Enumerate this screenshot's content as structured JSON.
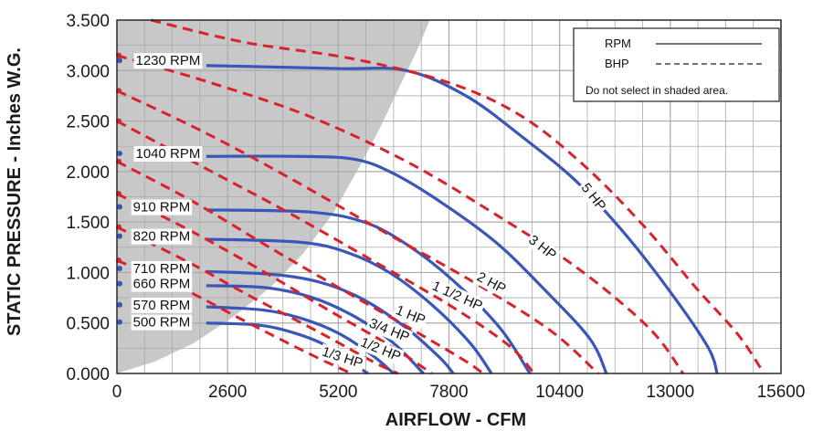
{
  "chart_data": {
    "type": "line",
    "xlabel": "AIRFLOW - CFM",
    "ylabel": "STATIC PRESSURE - Inches W.G.",
    "xlim": [
      0,
      15600
    ],
    "ylim": [
      0,
      3.5
    ],
    "x_ticks": [
      "0",
      "2600",
      "5200",
      "7800",
      "10400",
      "13000",
      "15600"
    ],
    "y_ticks": [
      "0.000",
      "0.500",
      "1.000",
      "1.500",
      "2.000",
      "2.500",
      "3.000",
      "3.500"
    ],
    "grid": true,
    "legend": {
      "position": "top-right",
      "entries": [
        {
          "label": "RPM",
          "style": "solid"
        },
        {
          "label": "BHP",
          "style": "dashed"
        }
      ],
      "note": "Do not select in shaded area."
    },
    "shaded_region": {
      "description": "Do not select in shaded area.",
      "boundary": [
        [
          0,
          0
        ],
        [
          900,
          0.12
        ],
        [
          1800,
          0.3
        ],
        [
          2700,
          0.55
        ],
        [
          3600,
          0.85
        ],
        [
          4400,
          1.2
        ],
        [
          5100,
          1.6
        ],
        [
          5700,
          2.05
        ],
        [
          6200,
          2.45
        ],
        [
          6650,
          2.85
        ],
        [
          7050,
          3.2
        ],
        [
          7350,
          3.5
        ]
      ],
      "color": "#c8c8c8"
    },
    "series": [
      {
        "name": "1230 RPM",
        "type": "rpm",
        "points": [
          [
            2100,
            3.05
          ],
          [
            5200,
            3.02
          ],
          [
            6800,
            3.0
          ],
          [
            8200,
            2.75
          ],
          [
            9500,
            2.35
          ],
          [
            10800,
            1.9
          ],
          [
            12000,
            1.35
          ],
          [
            13100,
            0.75
          ],
          [
            13900,
            0.25
          ],
          [
            14100,
            0.0
          ]
        ]
      },
      {
        "name": "1040 RPM",
        "type": "rpm",
        "points": [
          [
            2100,
            2.15
          ],
          [
            4300,
            2.15
          ],
          [
            5600,
            2.12
          ],
          [
            6500,
            1.98
          ],
          [
            7600,
            1.7
          ],
          [
            8900,
            1.3
          ],
          [
            10000,
            0.85
          ],
          [
            11100,
            0.35
          ],
          [
            11500,
            0.0
          ]
        ]
      },
      {
        "name": "910 RPM",
        "type": "rpm",
        "points": [
          [
            2100,
            1.62
          ],
          [
            4500,
            1.6
          ],
          [
            5800,
            1.5
          ],
          [
            6800,
            1.28
          ],
          [
            7900,
            0.92
          ],
          [
            9000,
            0.45
          ],
          [
            9700,
            0.0
          ]
        ]
      },
      {
        "name": "820 RPM",
        "type": "rpm",
        "points": [
          [
            2100,
            1.33
          ],
          [
            4300,
            1.3
          ],
          [
            5400,
            1.2
          ],
          [
            6400,
            1.0
          ],
          [
            7400,
            0.68
          ],
          [
            8300,
            0.3
          ],
          [
            8800,
            0.0
          ]
        ]
      },
      {
        "name": "710 RPM",
        "type": "rpm",
        "points": [
          [
            2100,
            1.01
          ],
          [
            3700,
            0.98
          ],
          [
            4800,
            0.9
          ],
          [
            5800,
            0.73
          ],
          [
            6800,
            0.45
          ],
          [
            7600,
            0.15
          ],
          [
            7900,
            0.0
          ]
        ]
      },
      {
        "name": "660 RPM",
        "type": "rpm",
        "points": [
          [
            2100,
            0.87
          ],
          [
            3500,
            0.85
          ],
          [
            4600,
            0.75
          ],
          [
            5600,
            0.56
          ],
          [
            6500,
            0.3
          ],
          [
            7200,
            0.0
          ]
        ]
      },
      {
        "name": "570 RPM",
        "type": "rpm",
        "points": [
          [
            2100,
            0.66
          ],
          [
            3400,
            0.63
          ],
          [
            4300,
            0.55
          ],
          [
            5200,
            0.4
          ],
          [
            6000,
            0.18
          ],
          [
            6500,
            0.0
          ]
        ]
      },
      {
        "name": "500 RPM",
        "type": "rpm",
        "points": [
          [
            2100,
            0.5
          ],
          [
            3300,
            0.48
          ],
          [
            4100,
            0.41
          ],
          [
            4900,
            0.28
          ],
          [
            5600,
            0.08
          ],
          [
            5900,
            0.0
          ]
        ]
      },
      {
        "name": "5 HP",
        "type": "bhp",
        "points": [
          [
            800,
            3.5
          ],
          [
            3000,
            3.28
          ],
          [
            5500,
            3.12
          ],
          [
            7800,
            2.88
          ],
          [
            9500,
            2.55
          ],
          [
            11000,
            2.05
          ],
          [
            12400,
            1.45
          ],
          [
            13600,
            0.85
          ],
          [
            14600,
            0.38
          ],
          [
            15200,
            0.0
          ]
        ]
      },
      {
        "name": "3 HP",
        "type": "bhp",
        "points": [
          [
            0,
            3.15
          ],
          [
            2200,
            2.88
          ],
          [
            4500,
            2.55
          ],
          [
            6800,
            2.1
          ],
          [
            8800,
            1.6
          ],
          [
            10800,
            1.05
          ],
          [
            12500,
            0.45
          ],
          [
            13300,
            0.0
          ]
        ]
      },
      {
        "name": "2 HP",
        "type": "bhp",
        "points": [
          [
            0,
            2.8
          ],
          [
            2000,
            2.4
          ],
          [
            4000,
            1.95
          ],
          [
            6200,
            1.42
          ],
          [
            8400,
            0.9
          ],
          [
            10200,
            0.42
          ],
          [
            11300,
            0.0
          ]
        ]
      },
      {
        "name": "1 1/2 HP",
        "type": "bhp",
        "points": [
          [
            0,
            2.5
          ],
          [
            2000,
            2.05
          ],
          [
            4000,
            1.6
          ],
          [
            6000,
            1.12
          ],
          [
            7800,
            0.68
          ],
          [
            9200,
            0.28
          ],
          [
            9800,
            0.0
          ]
        ]
      },
      {
        "name": "1 HP",
        "type": "bhp",
        "points": [
          [
            0,
            2.1
          ],
          [
            1800,
            1.7
          ],
          [
            3700,
            1.22
          ],
          [
            5500,
            0.78
          ],
          [
            7000,
            0.42
          ],
          [
            8200,
            0.12
          ],
          [
            8600,
            0.0
          ]
        ]
      },
      {
        "name": "3/4 HP",
        "type": "bhp",
        "points": [
          [
            0,
            1.78
          ],
          [
            1700,
            1.42
          ],
          [
            3400,
            1.02
          ],
          [
            5000,
            0.62
          ],
          [
            6400,
            0.28
          ],
          [
            7400,
            0.0
          ]
        ]
      },
      {
        "name": "1/2 HP",
        "type": "bhp",
        "points": [
          [
            0,
            1.45
          ],
          [
            1600,
            1.12
          ],
          [
            3200,
            0.75
          ],
          [
            4700,
            0.42
          ],
          [
            6000,
            0.12
          ],
          [
            6600,
            0.0
          ]
        ]
      },
      {
        "name": "1/3 HP",
        "type": "bhp",
        "points": [
          [
            0,
            1.12
          ],
          [
            1500,
            0.85
          ],
          [
            3000,
            0.52
          ],
          [
            4400,
            0.22
          ],
          [
            5500,
            0.0
          ]
        ]
      }
    ],
    "rpm_labels": [
      {
        "text": "1230 RPM",
        "x": 1200,
        "y": 3.1
      },
      {
        "text": "1040 RPM",
        "x": 1200,
        "y": 2.18
      },
      {
        "text": "910 RPM",
        "x": 1050,
        "y": 1.65
      },
      {
        "text": "820 RPM",
        "x": 1050,
        "y": 1.36
      },
      {
        "text": "710 RPM",
        "x": 1050,
        "y": 1.04
      },
      {
        "text": "660 RPM",
        "x": 1050,
        "y": 0.89
      },
      {
        "text": "570 RPM",
        "x": 1050,
        "y": 0.68
      },
      {
        "text": "500 RPM",
        "x": 1050,
        "y": 0.51
      }
    ],
    "hp_labels": [
      {
        "text": "5 HP",
        "x": 11200,
        "y": 1.75,
        "angle": 52
      },
      {
        "text": "3 HP",
        "x": 10000,
        "y": 1.25,
        "angle": 38
      },
      {
        "text": "2 HP",
        "x": 8800,
        "y": 0.9,
        "angle": 28
      },
      {
        "text": "1 1/2 HP",
        "x": 8000,
        "y": 0.77,
        "angle": 24
      },
      {
        "text": "1 HP",
        "x": 6900,
        "y": 0.58,
        "angle": 22
      },
      {
        "text": "3/4 HP",
        "x": 6400,
        "y": 0.43,
        "angle": 22
      },
      {
        "text": "1/2 HP",
        "x": 6200,
        "y": 0.24,
        "angle": 22
      },
      {
        "text": "1/3 HP",
        "x": 5300,
        "y": 0.16,
        "angle": 18
      }
    ],
    "colors": {
      "rpm_line": "#3a56b8",
      "bhp_line": "#d8222c",
      "shade": "#c8c8c8",
      "grid": "#aaaaaa",
      "rpm_marker": "#3a56b8",
      "bhp_marker": "#d8222c"
    }
  }
}
